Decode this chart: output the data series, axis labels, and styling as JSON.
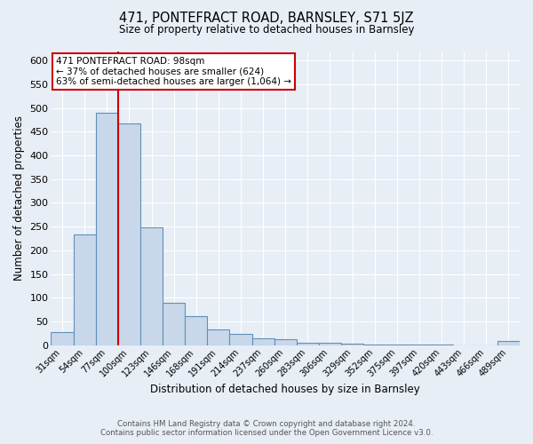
{
  "title": "471, PONTEFRACT ROAD, BARNSLEY, S71 5JZ",
  "subtitle": "Size of property relative to detached houses in Barnsley",
  "xlabel": "Distribution of detached houses by size in Barnsley",
  "ylabel": "Number of detached properties",
  "bin_labels": [
    "31sqm",
    "54sqm",
    "77sqm",
    "100sqm",
    "123sqm",
    "146sqm",
    "168sqm",
    "191sqm",
    "214sqm",
    "237sqm",
    "260sqm",
    "283sqm",
    "306sqm",
    "329sqm",
    "352sqm",
    "375sqm",
    "397sqm",
    "420sqm",
    "443sqm",
    "466sqm",
    "489sqm"
  ],
  "bar_values": [
    27,
    234,
    490,
    468,
    249,
    90,
    62,
    33,
    23,
    14,
    12,
    5,
    5,
    3,
    2,
    2,
    1,
    1,
    0,
    0,
    8
  ],
  "bar_color": "#c8d8ea",
  "bar_edge_color": "#6090b8",
  "property_line_color": "#cc0000",
  "annotation_title": "471 PONTEFRACT ROAD: 98sqm",
  "annotation_line1": "← 37% of detached houses are smaller (624)",
  "annotation_line2": "63% of semi-detached houses are larger (1,064) →",
  "annotation_box_color": "#ffffff",
  "annotation_box_edge": "#cc0000",
  "ylim": [
    0,
    620
  ],
  "yticks": [
    0,
    50,
    100,
    150,
    200,
    250,
    300,
    350,
    400,
    450,
    500,
    550,
    600
  ],
  "footer1": "Contains HM Land Registry data © Crown copyright and database right 2024.",
  "footer2": "Contains public sector information licensed under the Open Government Licence v3.0.",
  "bg_color": "#e8eef6",
  "plot_bg_color": "#e8eef6",
  "grid_color": "#ffffff"
}
